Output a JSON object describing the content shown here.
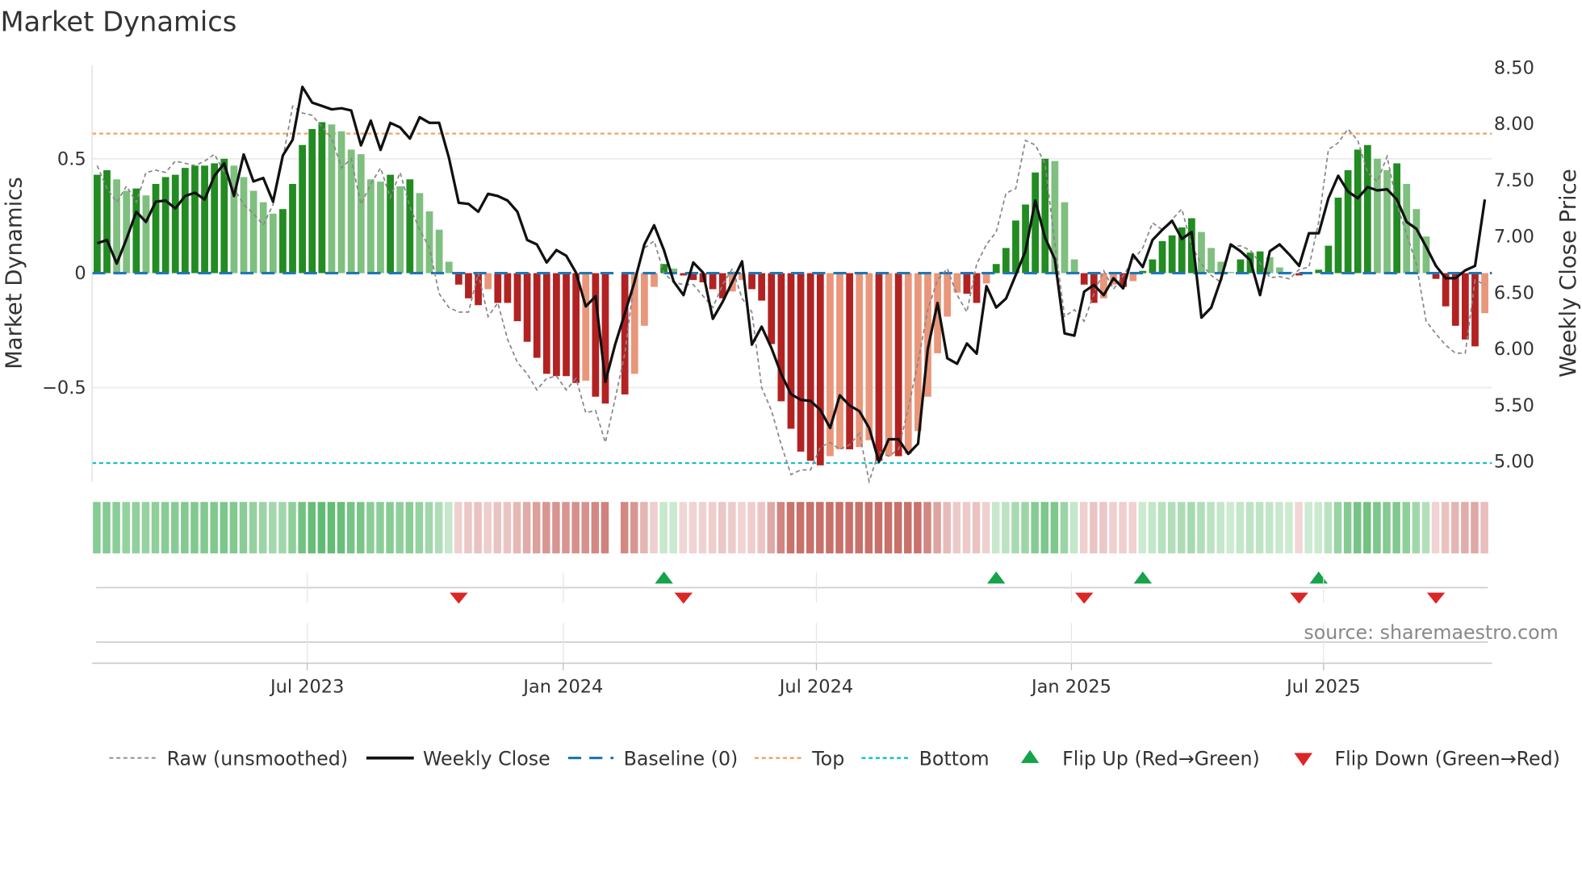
{
  "title": "Market Dynamics",
  "source": "source: sharemaestro.com",
  "colors": {
    "up_strong": "#228b22",
    "up_weak": "#7fbf7f",
    "down_strong": "#b22222",
    "down_weak": "#e9967a",
    "close": "#111111",
    "raw": "#888888",
    "baseline": "#1f77b4",
    "top": "#f4a261",
    "bottom": "#17becf",
    "flip_up": "#16a34a",
    "flip_down": "#dc2626"
  },
  "legend": {
    "raw": "Raw (unsmoothed)",
    "close": "Weekly Close",
    "baseline": "Baseline (0)",
    "top": "Top",
    "bottom": "Bottom",
    "flip_up": "Flip Up (Red→Green)",
    "flip_down": "Flip Down (Green→Red)"
  },
  "chart_data": {
    "type": "bar",
    "title": "Market Dynamics",
    "ylabel": "Market Dynamics",
    "y2label": "Weekly Close Price",
    "ylim": [
      -0.93,
      0.91
    ],
    "y2lim": [
      4.8,
      8.55
    ],
    "yticks": [
      {
        "v": 0.5,
        "label": "0.5"
      },
      {
        "v": 0,
        "label": "0"
      },
      {
        "v": -0.5,
        "label": "−0.5"
      }
    ],
    "y2ticks": [
      {
        "v": 8.5,
        "label": "8.50"
      },
      {
        "v": 8.0,
        "label": "8.00"
      },
      {
        "v": 7.5,
        "label": "7.50"
      },
      {
        "v": 7.0,
        "label": "7.00"
      },
      {
        "v": 6.5,
        "label": "6.50"
      },
      {
        "v": 6.0,
        "label": "6.00"
      },
      {
        "v": 5.5,
        "label": "5.50"
      },
      {
        "v": 5.0,
        "label": "5.00"
      }
    ],
    "xticks": [
      {
        "week": 21.5,
        "label": "Jul 2023"
      },
      {
        "week": 47.7,
        "label": "Jan 2024"
      },
      {
        "week": 73.6,
        "label": "Jul 2024"
      },
      {
        "week": 99.7,
        "label": "Jan 2025"
      },
      {
        "week": 125.5,
        "label": "Jul 2025"
      }
    ],
    "top_threshold": 0.61,
    "bottom_threshold": -0.83,
    "baseline": 0,
    "dynamics": [
      0.43,
      0.45,
      0.41,
      0.36,
      0.37,
      0.34,
      0.39,
      0.42,
      0.43,
      0.46,
      0.47,
      0.47,
      0.48,
      0.5,
      0.47,
      0.42,
      0.36,
      0.31,
      0.26,
      0.28,
      0.39,
      0.56,
      0.63,
      0.66,
      0.65,
      0.62,
      0.54,
      0.52,
      0.41,
      0.4,
      0.43,
      0.38,
      0.41,
      0.35,
      0.27,
      0.19,
      0.05,
      -0.05,
      -0.11,
      -0.14,
      -0.07,
      -0.13,
      -0.13,
      -0.21,
      -0.3,
      -0.37,
      -0.44,
      -0.45,
      -0.45,
      -0.48,
      -0.47,
      -0.54,
      -0.57,
      null,
      -0.53,
      -0.44,
      -0.23,
      -0.06,
      0.04,
      0.02,
      -0.01,
      -0.03,
      -0.04,
      -0.07,
      -0.11,
      -0.08,
      -0.03,
      -0.07,
      -0.12,
      -0.31,
      -0.56,
      -0.68,
      -0.78,
      -0.82,
      -0.84,
      -0.8,
      -0.77,
      -0.77,
      -0.76,
      -0.73,
      -0.82,
      -0.8,
      -0.8,
      -0.79,
      -0.69,
      -0.54,
      -0.35,
      -0.19,
      -0.085,
      -0.09,
      -0.13,
      -0.045,
      0.04,
      0.11,
      0.23,
      0.3,
      0.44,
      0.5,
      0.49,
      0.31,
      0.06,
      -0.05,
      -0.13,
      -0.11,
      -0.05,
      -0.06,
      -0.035,
      0.01,
      0.06,
      0.14,
      0.165,
      0.2,
      0.24,
      0.18,
      0.11,
      0.05,
      0.005,
      0.06,
      0.09,
      0.095,
      0.07,
      0.025,
      0.005,
      -0.01,
      0.003,
      0.015,
      0.12,
      0.33,
      0.45,
      0.54,
      0.56,
      0.5,
      0.45,
      0.48,
      0.39,
      0.28,
      0.16,
      -0.025,
      -0.145,
      -0.23,
      -0.29,
      -0.32,
      -0.175
    ],
    "raw": [
      0.47,
      0.37,
      0.31,
      0.38,
      0.31,
      0.44,
      0.45,
      0.44,
      0.49,
      0.48,
      0.47,
      0.49,
      0.52,
      0.44,
      0.37,
      0.3,
      0.26,
      0.21,
      0.3,
      0.5,
      0.73,
      0.7,
      0.69,
      0.64,
      0.59,
      0.46,
      0.5,
      0.3,
      0.39,
      0.46,
      0.33,
      0.44,
      0.29,
      0.19,
      0.11,
      -0.09,
      -0.15,
      -0.17,
      -0.17,
      0.0,
      -0.19,
      -0.13,
      -0.29,
      -0.39,
      -0.44,
      -0.51,
      -0.46,
      -0.45,
      -0.51,
      -0.46,
      -0.61,
      -0.6,
      -0.74,
      -0.55,
      -0.35,
      -0.02,
      0.11,
      0.14,
      0.0,
      -0.04,
      -0.05,
      -0.05,
      -0.1,
      -0.15,
      -0.05,
      0.02,
      -0.11,
      -0.17,
      -0.5,
      -0.6,
      -0.75,
      -0.88,
      -0.86,
      -0.86,
      -0.76,
      -0.74,
      -0.77,
      -0.75,
      -0.7,
      -0.91,
      -0.78,
      -0.8,
      -0.77,
      -0.59,
      -0.39,
      -0.16,
      -0.03,
      0.02,
      -0.095,
      -0.17,
      0.04,
      0.125,
      0.18,
      0.35,
      0.37,
      0.58,
      0.56,
      0.48,
      0.13,
      -0.19,
      -0.16,
      -0.21,
      -0.09,
      0.01,
      -0.07,
      -0.01,
      0.055,
      0.11,
      0.22,
      0.19,
      0.235,
      0.28,
      0.12,
      0.04,
      -0.01,
      -0.04,
      0.115,
      0.12,
      0.1,
      0.045,
      -0.02,
      -0.015,
      -0.025,
      0.016,
      0.027,
      0.225,
      0.54,
      0.57,
      0.63,
      0.58,
      0.44,
      0.4,
      0.51,
      0.3,
      0.17,
      0.04,
      -0.21,
      -0.265,
      -0.315,
      -0.35,
      -0.35,
      -0.03,
      -0.05
    ],
    "weekly_close": [
      6.93,
      6.96,
      6.75,
      6.97,
      7.21,
      7.12,
      7.3,
      7.31,
      7.24,
      7.35,
      7.38,
      7.32,
      7.53,
      7.64,
      7.35,
      7.72,
      7.48,
      7.51,
      7.3,
      7.71,
      7.85,
      8.32,
      8.18,
      8.15,
      8.12,
      8.13,
      8.11,
      7.8,
      8.02,
      7.76,
      8.0,
      7.96,
      7.86,
      8.05,
      8.0,
      8.0,
      7.69,
      7.29,
      7.28,
      7.21,
      7.37,
      7.35,
      7.31,
      7.21,
      6.96,
      6.92,
      6.76,
      6.87,
      6.82,
      6.67,
      6.37,
      6.46,
      5.7,
      6.03,
      6.31,
      6.59,
      6.92,
      7.09,
      6.87,
      6.59,
      6.47,
      6.76,
      6.67,
      6.26,
      6.41,
      6.59,
      6.77,
      6.03,
      6.19,
      6.0,
      5.77,
      5.59,
      5.54,
      5.53,
      5.45,
      5.29,
      5.58,
      5.49,
      5.44,
      5.29,
      4.99,
      5.19,
      5.19,
      5.06,
      5.15,
      5.99,
      6.4,
      5.91,
      5.86,
      6.04,
      5.95,
      6.55,
      6.36,
      6.44,
      6.65,
      6.86,
      7.31,
      6.98,
      6.79,
      6.13,
      6.11,
      6.5,
      6.56,
      6.47,
      6.62,
      6.53,
      6.83,
      6.72,
      6.96,
      7.05,
      7.13,
      6.97,
      7.03,
      6.27,
      6.36,
      6.61,
      6.92,
      6.86,
      6.78,
      6.47,
      6.86,
      6.92,
      6.83,
      6.73,
      7.02,
      7.02,
      7.33,
      7.53,
      7.39,
      7.33,
      7.43,
      7.4,
      7.41,
      7.32,
      7.12,
      7.06,
      6.9,
      6.73,
      6.62,
      6.62,
      6.69,
      6.73,
      7.32
    ],
    "flip_up_weeks": [
      58,
      92,
      107,
      125
    ],
    "flip_down_weeks": [
      37,
      60,
      101,
      123,
      137
    ],
    "legend_position": "bottom"
  }
}
